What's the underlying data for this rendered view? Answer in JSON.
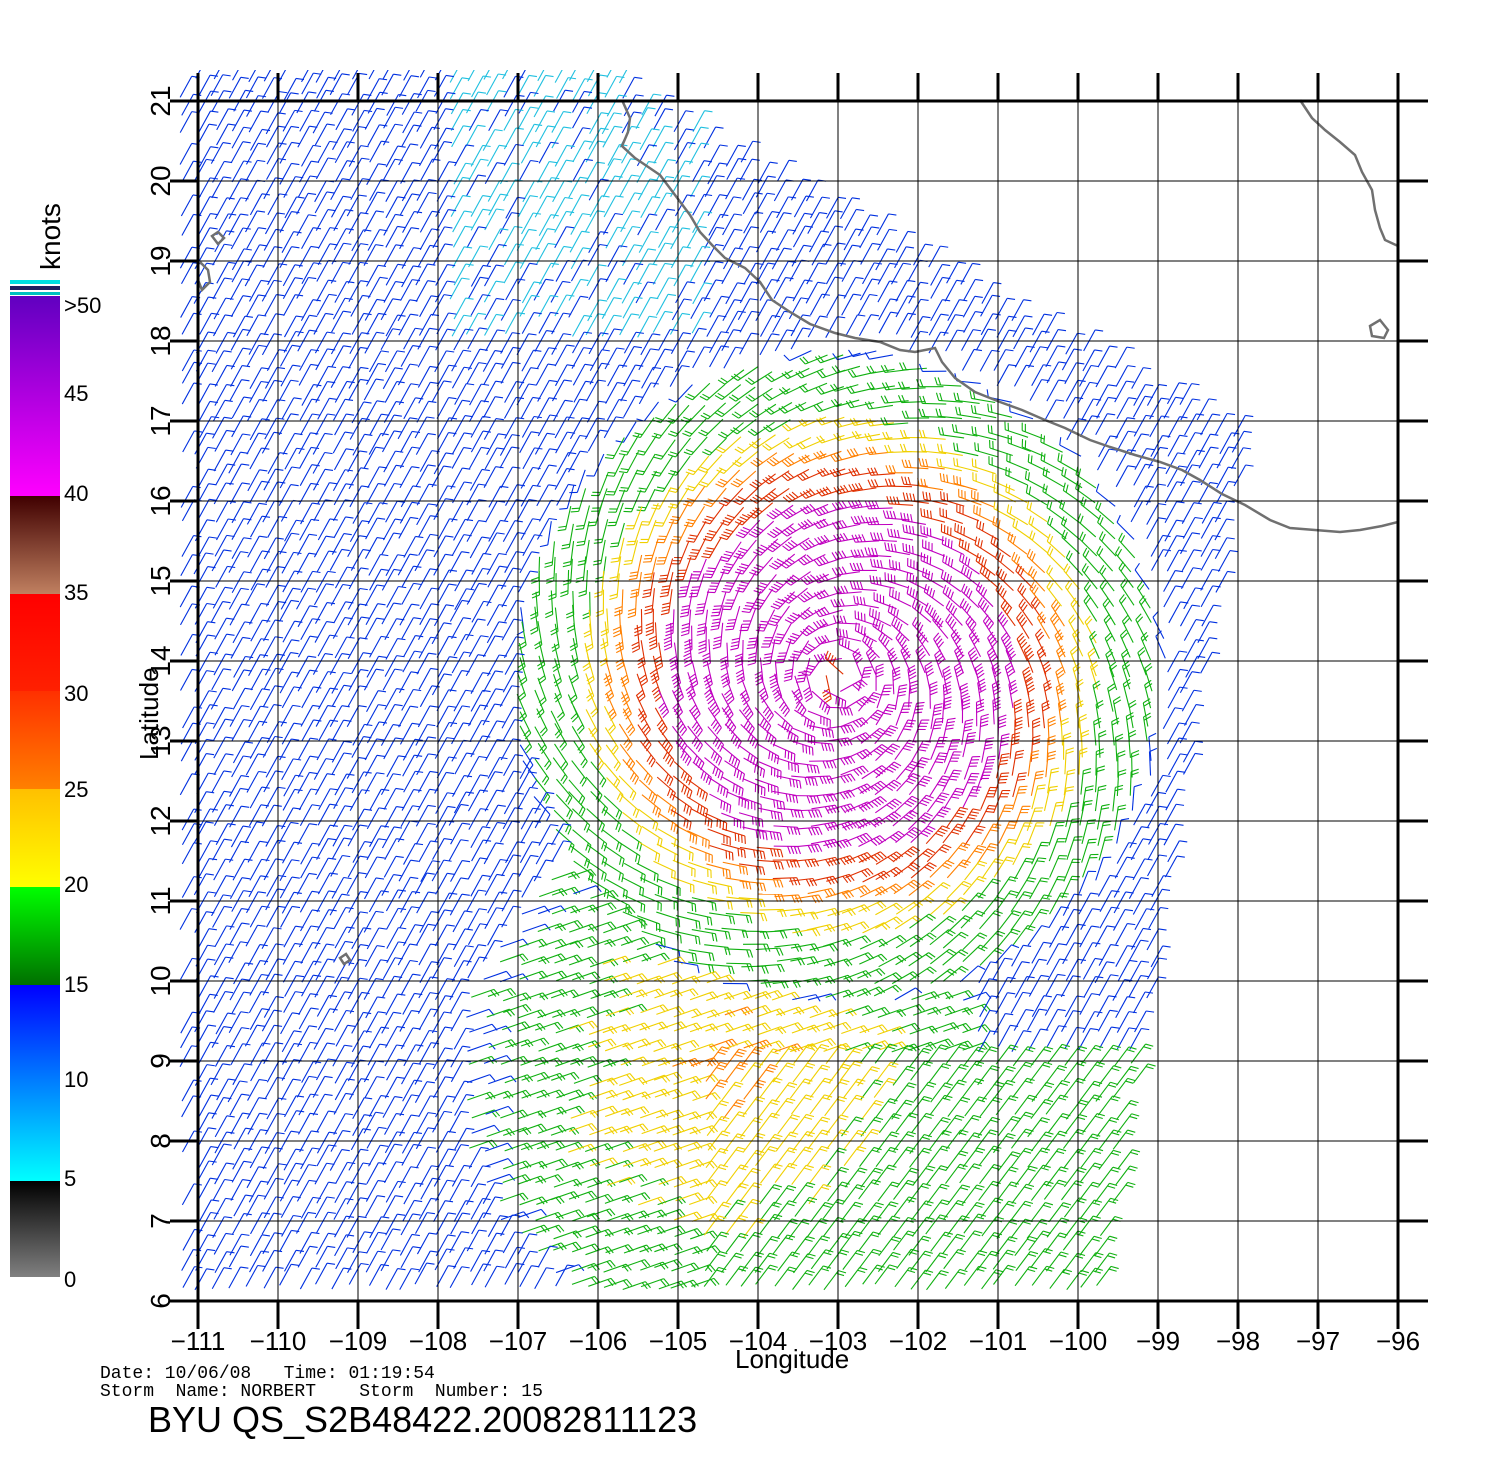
{
  "map": {
    "lat_range": [
      6,
      21
    ],
    "lon_range": [
      -111,
      -96
    ],
    "lat_ticks": [
      "6",
      "7",
      "8",
      "9",
      "10",
      "11",
      "12",
      "13",
      "14",
      "15",
      "16",
      "17",
      "18",
      "19",
      "20",
      "21"
    ],
    "lon_ticks": [
      "−111",
      "−110",
      "−109",
      "−108",
      "−107",
      "−106",
      "−105",
      "−104",
      "−103",
      "−102",
      "−101",
      "−100",
      "−99",
      "−98",
      "−97",
      "−96"
    ],
    "xlabel": "Longitude",
    "ylabel": "Latitude",
    "coastline_color": "#707070",
    "grid_color": "#000000",
    "storm_center": {
      "lon": -103,
      "lat": 13.8
    }
  },
  "legend": {
    "units": "knots",
    "labels": [
      ">50",
      "45",
      "40",
      "35",
      "30",
      "25",
      "20",
      "15",
      "10",
      "5",
      "0"
    ],
    "colors": {
      "0_5": [
        "#808080",
        "#000000"
      ],
      "5_15": [
        "#00ffff",
        "#0000ff"
      ],
      "15_20": [
        "#007000",
        "#00ff00"
      ],
      "20_25": [
        "#ffff00",
        "#ffc000"
      ],
      "25_30": [
        "#ff8000",
        "#ff3000"
      ],
      "30_35": [
        "#ff2000",
        "#ff0000"
      ],
      "35_40": [
        "#c08060",
        "#400000"
      ],
      "40_50": [
        "#ff00ff",
        "#6000c0"
      ]
    }
  },
  "info": {
    "date_time": "Date: 10/06/08   Time: 01:19:54",
    "storm": "Storm  Name: NORBERT    Storm  Number: 15",
    "product": "BYU  QS_S2B48422.20082811123"
  }
}
